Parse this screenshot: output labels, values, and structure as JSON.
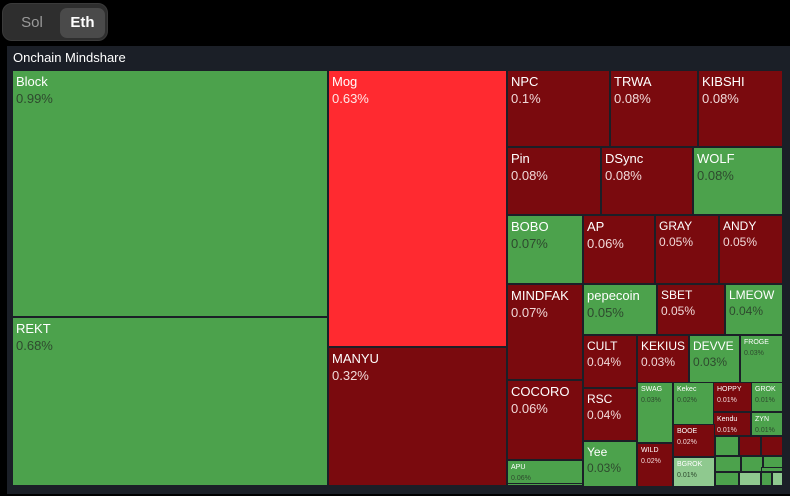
{
  "toggle": {
    "options": [
      "Sol",
      "Eth"
    ],
    "selected": "Eth"
  },
  "panel": {
    "title": "Onchain Mindshare"
  },
  "colors": {
    "green": "#4ca24c",
    "light_green": "#8fc98f",
    "red": "#7a0a0e",
    "bright_red": "#ff2a30",
    "bg": "#1b1f27"
  },
  "tiles": [
    {
      "name": "Block",
      "pct": "0.99%",
      "color": "green"
    },
    {
      "name": "REKT",
      "pct": "0.68%",
      "color": "green"
    },
    {
      "name": "Mog",
      "pct": "0.63%",
      "color": "bright_red"
    },
    {
      "name": "MANYU",
      "pct": "0.32%",
      "color": "red"
    },
    {
      "name": "NPC",
      "pct": "0.1%",
      "color": "red"
    },
    {
      "name": "TRWA",
      "pct": "0.08%",
      "color": "red"
    },
    {
      "name": "KIBSHI",
      "pct": "0.08%",
      "color": "red"
    },
    {
      "name": "Pin",
      "pct": "0.08%",
      "color": "red"
    },
    {
      "name": "DSync",
      "pct": "0.08%",
      "color": "red"
    },
    {
      "name": "WOLF",
      "pct": "0.08%",
      "color": "green"
    },
    {
      "name": "BOBO",
      "pct": "0.07%",
      "color": "green"
    },
    {
      "name": "AP",
      "pct": "0.06%",
      "color": "red"
    },
    {
      "name": "GRAY",
      "pct": "0.05%",
      "color": "red"
    },
    {
      "name": "ANDY",
      "pct": "0.05%",
      "color": "red"
    },
    {
      "name": "MINDFAK",
      "pct": "0.07%",
      "color": "red"
    },
    {
      "name": "pepecoin",
      "pct": "0.05%",
      "color": "green"
    },
    {
      "name": "SBET",
      "pct": "0.05%",
      "color": "red"
    },
    {
      "name": "LMEOW",
      "pct": "0.04%",
      "color": "green"
    },
    {
      "name": "COCORO",
      "pct": "0.06%",
      "color": "red"
    },
    {
      "name": "CULT",
      "pct": "0.04%",
      "color": "red"
    },
    {
      "name": "KEKIUS",
      "pct": "0.03%",
      "color": "red"
    },
    {
      "name": "DEVVE",
      "pct": "0.03%",
      "color": "green"
    },
    {
      "name": "FROGE",
      "pct": "0.03%",
      "color": "green"
    },
    {
      "name": "APU",
      "pct": "0.06%",
      "color": "green"
    },
    {
      "name": "RSC",
      "pct": "0.04%",
      "color": "red"
    },
    {
      "name": "SWAG",
      "pct": "0.03%",
      "color": "green"
    },
    {
      "name": "Kekec",
      "pct": "0.02%",
      "color": "green"
    },
    {
      "name": "HOPPY",
      "pct": "0.01%",
      "color": "red"
    },
    {
      "name": "GROK",
      "pct": "0.01%",
      "color": "green"
    },
    {
      "name": "Kendu",
      "pct": "0.01%",
      "color": "red"
    },
    {
      "name": "ZYN",
      "pct": "0.01%",
      "color": "green"
    },
    {
      "name": "BOOE",
      "pct": "0.02%",
      "color": "red"
    },
    {
      "name": "Yee",
      "pct": "0.03%",
      "color": "green"
    },
    {
      "name": "WILD",
      "pct": "0.02%",
      "color": "red"
    },
    {
      "name": "BGROK",
      "pct": "0.01%",
      "color": "light_green"
    },
    {
      "name": "",
      "pct": "",
      "color": "green"
    },
    {
      "name": "",
      "pct": "",
      "color": "red"
    },
    {
      "name": "",
      "pct": "",
      "color": "red"
    },
    {
      "name": "",
      "pct": "",
      "color": "green"
    },
    {
      "name": "",
      "pct": "",
      "color": "green"
    },
    {
      "name": "",
      "pct": "",
      "color": "green"
    },
    {
      "name": "",
      "pct": "",
      "color": "green"
    },
    {
      "name": "",
      "pct": "",
      "color": "light_green"
    },
    {
      "name": "",
      "pct": "",
      "color": "green"
    },
    {
      "name": "",
      "pct": "",
      "color": "light_green"
    },
    {
      "name": "",
      "pct": "",
      "color": "green"
    },
    {
      "name": "",
      "pct": "",
      "color": "green"
    },
    {
      "name": "",
      "pct": "",
      "color": "green"
    },
    {
      "name": "",
      "pct": "",
      "color": "green"
    }
  ]
}
